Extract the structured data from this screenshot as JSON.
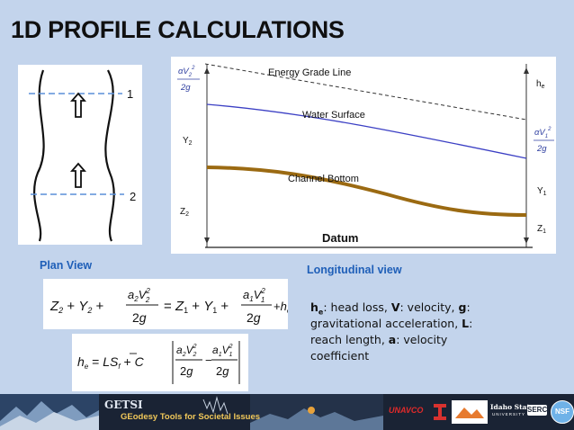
{
  "slide": {
    "title": "1D PROFILE CALCULATIONS"
  },
  "plan_view": {
    "caption": "Plan View",
    "section_labels": [
      "1",
      "2"
    ]
  },
  "longitudinal_view": {
    "caption": "Longitudinal view",
    "line_labels": {
      "energy_grade": "Energy Grade Line",
      "water_surface": "Water Surface",
      "channel_bottom": "Channel Bottom",
      "datum": "Datum"
    },
    "side_labels": {
      "he": "h",
      "he_sub": "e",
      "y2": "Y",
      "y2_sub": "2",
      "z2": "Z",
      "z2_sub": "2",
      "y1": "Y",
      "y1_sub": "1",
      "z1": "Z",
      "z1_sub": "1"
    },
    "velocity_heads": {
      "left_numerator": "αV",
      "left_sub": "2",
      "right_numerator": "αV",
      "right_sub": "1",
      "denominator": "2g",
      "exp": "2"
    }
  },
  "equations": {
    "energy": "Z₂ + Y₂ + a₂V₂²/2g = Z₁ + Y₁ + a₁V₁²/2g + hₑ",
    "head_loss": "hₑ = L·S̄f + C|a₂V₂²/2g − a₁V₁²/2g|"
  },
  "definitions": [
    {
      "term": "h",
      "sub": "e",
      "text": ": head loss, "
    },
    {
      "term": "V",
      "text": ": velocity, "
    },
    {
      "term": "g",
      "text": ": gravitational acceleration, "
    },
    {
      "term": "L",
      "text": ": reach length, "
    },
    {
      "term": "a",
      "text": ": velocity coefficient"
    }
  ],
  "footer": {
    "getsi_name": "GETSI",
    "getsi_tagline": "GEodesy Tools for Societal Issues",
    "partners": {
      "unavco": "UNAVCO",
      "idaho": "Idaho State",
      "idaho_sub": "UNIVERSITY",
      "serc": "SERC",
      "nsf": "NSF"
    }
  },
  "colors": {
    "background": "#c3d4ec",
    "caption_blue": "#1f5fb8",
    "water_surface": "#3b3fc4",
    "channel_bottom": "#9b6a12",
    "section_dash": "#5a8fd8"
  }
}
